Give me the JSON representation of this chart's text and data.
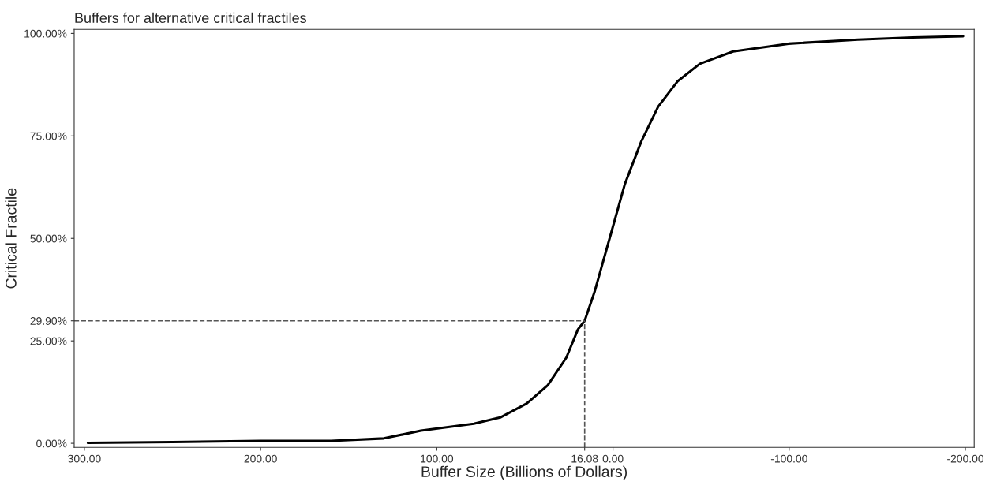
{
  "chart_data": {
    "type": "line",
    "title": "Buffers for alternative critical fractiles",
    "xlabel": "Buffer Size (Billions of Dollars)",
    "ylabel": "Critical Fractile",
    "series": [
      {
        "color": "#000000",
        "x": [
          298,
          250,
          200,
          160,
          130,
          109,
          79,
          64,
          49,
          37,
          26.5,
          19.9,
          16.08,
          10.5,
          1,
          -6.7,
          -16.1,
          -25.6,
          -36.8,
          -49.3,
          -68.2,
          -99.6,
          -139,
          -170,
          -198.7
        ],
        "values": [
          0.1,
          0.3,
          0.6,
          0.6,
          1.2,
          3.1,
          4.8,
          6.3,
          9.7,
          14.2,
          20.9,
          27.8,
          29.9,
          36.9,
          51.4,
          63.2,
          73.7,
          82.1,
          88.4,
          92.6,
          95.6,
          97.5,
          98.5,
          99.0,
          99.3
        ]
      }
    ],
    "xlim": [
      305.8,
      -205
    ],
    "ylim": [
      -1,
      101
    ],
    "xticks": [
      {
        "value": 300,
        "label": "300.00"
      },
      {
        "value": 200,
        "label": "200.00"
      },
      {
        "value": 100,
        "label": "100.00"
      },
      {
        "value": 16.08,
        "label": "16.08"
      },
      {
        "value": 0,
        "label": "0.00"
      },
      {
        "value": -100,
        "label": "-100.00"
      },
      {
        "value": -200,
        "label": "-200.00"
      }
    ],
    "yticks": [
      {
        "value": 0,
        "label": "0.00%"
      },
      {
        "value": 25,
        "label": "25.00%"
      },
      {
        "value": 29.9,
        "label": "29.90%"
      },
      {
        "value": 50,
        "label": "50.00%"
      },
      {
        "value": 75,
        "label": "75.00%"
      },
      {
        "value": 100,
        "label": "100.00%"
      }
    ],
    "ref_lines": [
      {
        "axis": "y",
        "value": 29.9,
        "color": "#555555",
        "line_style": "dashed"
      },
      {
        "axis": "x",
        "value": 16.08,
        "color": "#555555",
        "line_style": "dashed"
      }
    ],
    "grid": false,
    "legend": false,
    "marker": "none",
    "line_style": "solid"
  }
}
